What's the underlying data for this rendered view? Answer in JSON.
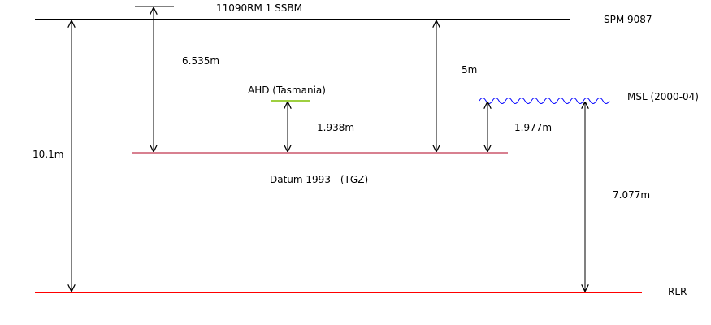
{
  "labels": {
    "spm": "SPM 9087",
    "benchmark": "11090RM 1 SSBM",
    "ahd": "AHD (Tasmania)",
    "msl": "MSL (2000-04)",
    "datum": "Datum 1993 - (TGZ)",
    "rlr": "RLR"
  },
  "measurements": {
    "spm_to_rlr": "10.1m",
    "spm_to_datum": "6.535m",
    "datum_to_ahd": "1.938m",
    "datum_to_spm_right": "5m",
    "datum_to_msl": "1.977m",
    "rlr_to_msl": "7.077m"
  },
  "colors": {
    "spm_line": "#000000",
    "datum_line": "#b00020",
    "rlr_line": "#ff0000",
    "ahd_line": "#7fbf00",
    "msl_wave": "#0000ff"
  }
}
